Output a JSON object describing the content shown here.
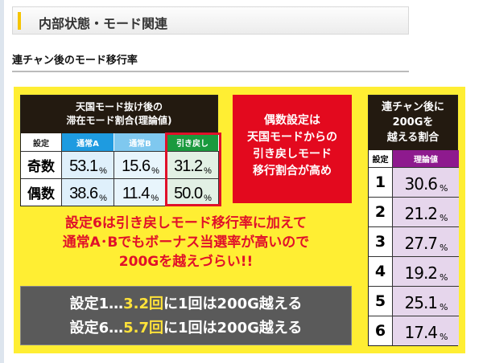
{
  "section": {
    "title": "内部状態・モード関連",
    "subtitle": "連チャン後のモード移行率"
  },
  "left_table": {
    "title_line1": "天国モード抜け後の",
    "title_line2": "滞在モード割合(理論値)",
    "headers": [
      "設定",
      "通常A",
      "通常B",
      "引き戻し"
    ],
    "header_colors": [
      "#ffffff",
      "#1e9be0",
      "#7fc8ef",
      "#1a9a3e"
    ],
    "rows": [
      {
        "label": "奇数",
        "values": [
          "53.1",
          "15.6",
          "31.2"
        ]
      },
      {
        "label": "偶数",
        "values": [
          "38.6",
          "11.4",
          "50.0"
        ]
      }
    ],
    "unit": "%"
  },
  "callout": {
    "lines": [
      "偶数設定は",
      "天国モードからの",
      "引き戻しモード",
      "移行割合が高め"
    ]
  },
  "right_table": {
    "title_lines": [
      "連チャン後に",
      "200Gを",
      "越える割合"
    ],
    "headers": [
      "設定",
      "理論値"
    ],
    "rows": [
      {
        "setting": "1",
        "value": "30.6"
      },
      {
        "setting": "2",
        "value": "21.2"
      },
      {
        "setting": "3",
        "value": "27.7"
      },
      {
        "setting": "4",
        "value": "19.2"
      },
      {
        "setting": "5",
        "value": "25.1"
      },
      {
        "setting": "6",
        "value": "17.4"
      }
    ],
    "unit": "%"
  },
  "note": {
    "lines": [
      "設定6は引き戻しモード移行率に加えて",
      "通常A･Bでもボーナス当選率が高いので",
      "200Gを越えづらい!!"
    ]
  },
  "summary": [
    {
      "prefix": "設定1…",
      "highlight": "3.2回",
      "suffix": "に1回は200G越える"
    },
    {
      "prefix": "設定6…",
      "highlight": "5.7回",
      "suffix": "に1回は200G越える"
    }
  ]
}
